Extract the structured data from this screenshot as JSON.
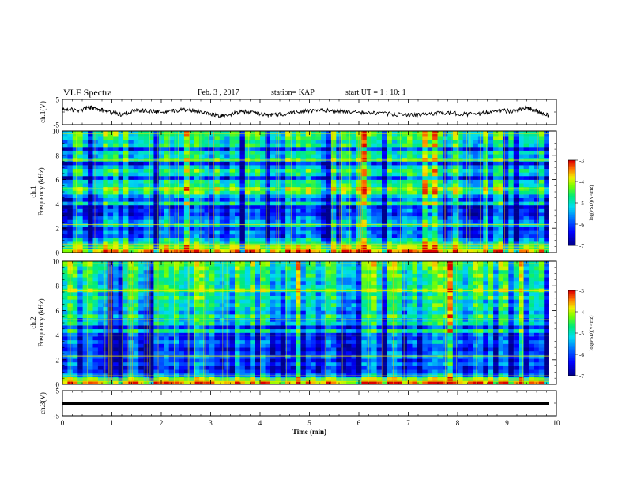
{
  "header": {
    "title": "VLF Spectra",
    "date": "Feb. 3 , 2017",
    "station": "station= KAP",
    "start_ut": "start UT =  1 : 10: 1"
  },
  "chart_data": [
    {
      "type": "line",
      "name": "ch1-waveform",
      "ylabel": "ch.1(V)",
      "ylim": [
        -5,
        5
      ],
      "yticks": [
        "5",
        "-5"
      ],
      "xlim": [
        0,
        9.85
      ],
      "x": [
        0,
        0.3,
        0.55,
        0.7,
        0.9,
        1.2,
        1.5,
        1.8,
        2.1,
        2.4,
        2.7,
        3.0,
        3.3,
        3.6,
        3.9,
        4.2,
        4.5,
        4.8,
        5.2,
        5.6,
        6.0,
        6.4,
        6.8,
        7.2,
        7.6,
        8.0,
        8.4,
        8.8,
        9.1,
        9.4,
        9.6,
        9.85
      ],
      "y": [
        1.5,
        0.5,
        1.8,
        1.2,
        0.2,
        -1.0,
        0.8,
        0.3,
        -0.2,
        1.0,
        0.6,
        -0.8,
        -1.6,
        0.2,
        -0.4,
        -1.2,
        -0.8,
        0.2,
        0.6,
        0.4,
        -0.2,
        -0.5,
        -1.0,
        -1.2,
        -0.4,
        -0.6,
        -1.0,
        0.8,
        0.2,
        1.6,
        0.3,
        -1.4
      ]
    },
    {
      "type": "heatmap",
      "name": "ch1-spectrogram",
      "ylabel": "ch.1\nFrequency (kHz)",
      "ylim": [
        0,
        10
      ],
      "yticks": [
        "0",
        "2",
        "4",
        "6",
        "8",
        "10"
      ],
      "xlim": [
        0,
        9.85
      ],
      "colorbar": {
        "label": "log(PSD)(V²/Hz)",
        "range": [
          -7,
          -3
        ],
        "ticks": [
          "-3",
          "-4",
          "-5",
          "-6",
          "-7"
        ]
      },
      "band_levels": {
        "freq_khz": [
          0,
          0.3,
          0.6,
          0.9,
          1.2,
          1.5,
          1.8,
          2.1,
          2.4,
          2.7,
          3.0,
          3.3,
          3.6,
          3.9,
          4.2,
          4.5,
          4.8,
          5.1,
          5.4,
          5.7,
          6.0,
          6.3,
          6.6,
          6.9,
          7.2,
          7.5,
          7.8,
          8.1,
          8.4,
          8.7,
          9.0,
          9.3,
          9.6
        ],
        "log_psd": [
          -3.6,
          -4.2,
          -4.9,
          -5.3,
          -6.0,
          -5.8,
          -6.2,
          -5.2,
          -5.6,
          -5.9,
          -6.3,
          -6.1,
          -6.5,
          -5.0,
          -6.0,
          -5.5,
          -4.6,
          -4.3,
          -4.9,
          -5.0,
          -6.2,
          -5.1,
          -4.8,
          -5.4,
          -6.3,
          -4.7,
          -5.2,
          -5.0,
          -6.2,
          -4.9,
          -5.1,
          -4.8,
          -4.7
        ]
      }
    },
    {
      "type": "heatmap",
      "name": "ch2-spectrogram",
      "ylabel": "ch.2\nFrequency (kHz)",
      "ylim": [
        0,
        10
      ],
      "yticks": [
        "0",
        "2",
        "4",
        "6",
        "8",
        "10"
      ],
      "xlim": [
        0,
        9.85
      ],
      "colorbar": {
        "label": "log(PSD)(V²/Hz)",
        "range": [
          -7,
          -3
        ],
        "ticks": [
          "-3",
          "-4",
          "-5",
          "-6",
          "-7"
        ]
      },
      "band_levels": {
        "freq_khz": [
          0,
          0.3,
          0.6,
          0.9,
          1.2,
          1.5,
          1.8,
          2.1,
          2.4,
          2.7,
          3.0,
          3.3,
          3.6,
          3.9,
          4.2,
          4.5,
          4.8,
          5.1,
          5.4,
          5.7,
          6.0,
          6.3,
          6.6,
          6.9,
          7.2,
          7.5,
          7.8,
          8.1,
          8.4,
          8.7,
          9.0,
          9.3,
          9.6
        ],
        "log_psd": [
          -3.5,
          -4.4,
          -5.6,
          -6.2,
          -6.4,
          -5.9,
          -6.3,
          -5.8,
          -6.1,
          -6.4,
          -6.2,
          -5.9,
          -6.3,
          -6.1,
          -5.0,
          -6.3,
          -5.1,
          -5.3,
          -4.9,
          -5.5,
          -5.2,
          -5.0,
          -5.3,
          -4.8,
          -5.2,
          -4.5,
          -4.9,
          -5.1,
          -5.0,
          -4.8,
          -4.9,
          -4.7,
          -4.6
        ]
      }
    },
    {
      "type": "line",
      "name": "ch3-waveform",
      "ylabel": "ch.3(V)",
      "ylim": [
        -5,
        5
      ],
      "yticks": [
        "5",
        "-5"
      ],
      "xlim": [
        0,
        9.85
      ],
      "x": [
        0,
        9.85
      ],
      "y": [
        0,
        0
      ]
    }
  ],
  "xaxis": {
    "label": "Time (min)",
    "ticks": [
      "0",
      "1",
      "2",
      "3",
      "4",
      "5",
      "6",
      "7",
      "8",
      "9",
      "10"
    ],
    "range": [
      0,
      10
    ]
  }
}
